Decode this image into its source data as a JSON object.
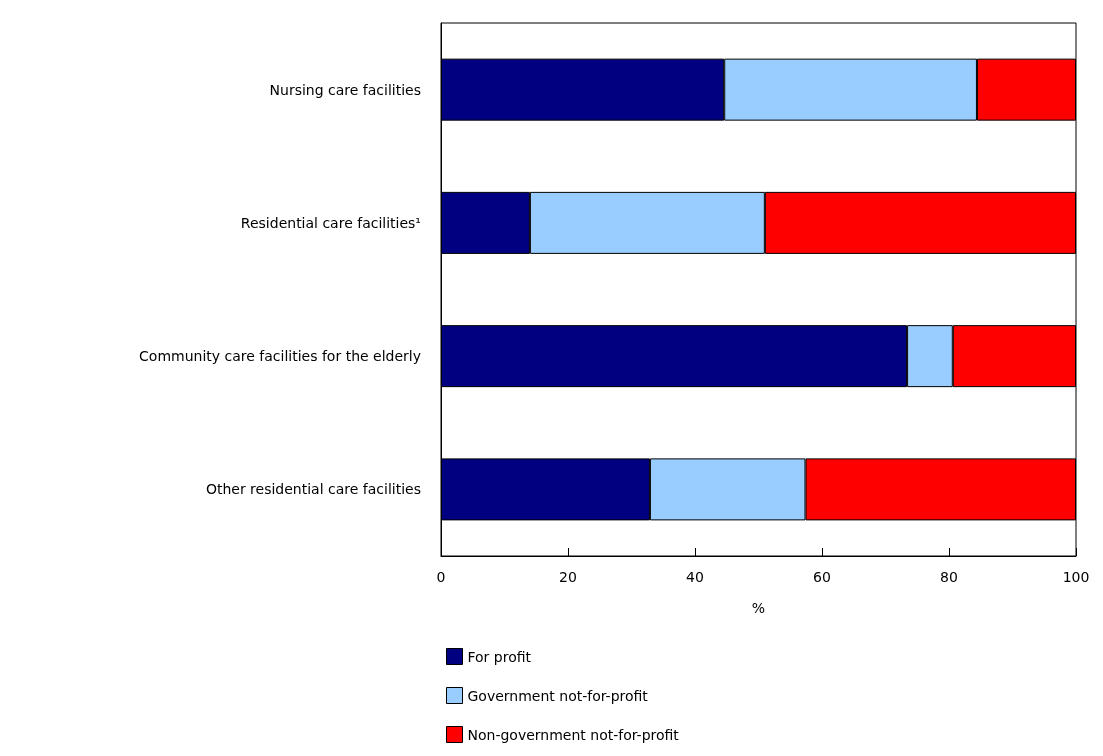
{
  "chart_data": {
    "type": "bar",
    "orientation": "horizontal",
    "stacked": true,
    "categories": [
      "Nursing care facilities",
      "Residential care facilities¹",
      "Community care facilities for the elderly",
      "Other residential care facilities"
    ],
    "series": [
      {
        "name": "For profit",
        "color": "#000080",
        "values": [
          44.6,
          14.0,
          73.4,
          32.9
        ]
      },
      {
        "name": "Government not-for-profit",
        "color": "#99ccff",
        "values": [
          39.8,
          37.0,
          7.2,
          24.5
        ]
      },
      {
        "name": "Non-government not-for-profit",
        "color": "#ff0000",
        "values": [
          15.6,
          49.0,
          19.4,
          42.6
        ]
      }
    ],
    "xlabel": "%",
    "xlim": [
      0,
      100
    ],
    "xticks": [
      0,
      20,
      40,
      60,
      80,
      100
    ],
    "grid": false,
    "legend": "bottom"
  }
}
